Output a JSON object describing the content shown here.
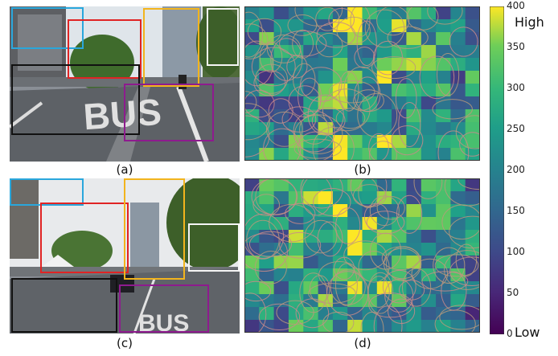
{
  "labels": {
    "a": "(a)",
    "b": "(b)",
    "c": "(c)",
    "d": "(d)"
  },
  "road_marking_top": "BUS",
  "road_marking_bottom": "BUS",
  "colorbar": {
    "ticks": [
      "0",
      "50",
      "100",
      "150",
      "200",
      "250",
      "300",
      "350",
      "400"
    ],
    "high_label": "High",
    "low_label": "Low",
    "range": [
      0,
      400
    ]
  },
  "box_colors": {
    "cyan": "#2aa7dc",
    "red": "#e02424",
    "yellow": "#f2b41d",
    "white": "#f5f5f5",
    "black": "#111111",
    "purple": "#8e1b8e"
  },
  "heatmap_b_seed": 7,
  "heatmap_d_seed": 23
}
